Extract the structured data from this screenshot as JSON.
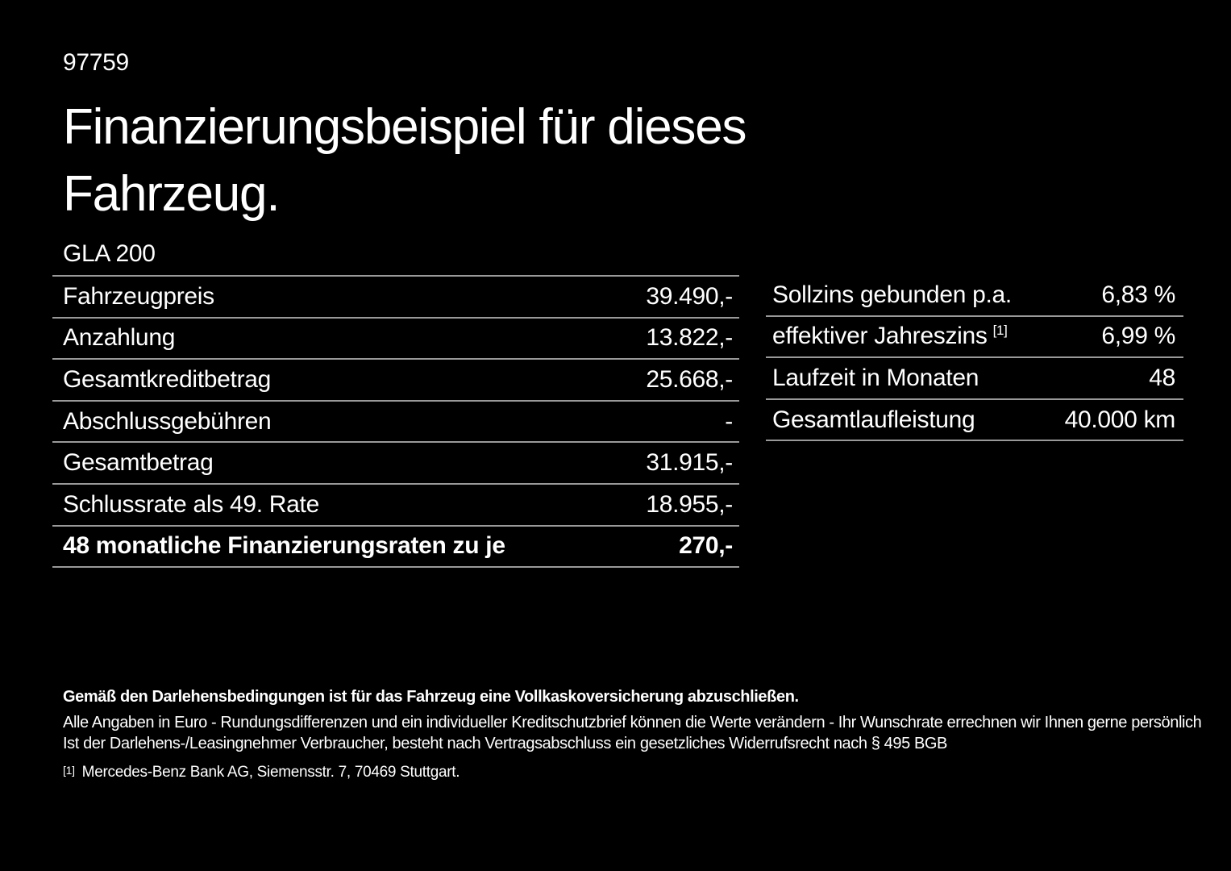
{
  "page": {
    "doc_number": "97759",
    "title_line1": "Finanzierungsbeispiel für dieses",
    "title_line2": "Fahrzeug.",
    "model": "GLA 200"
  },
  "finance_table": {
    "rows": [
      {
        "label": "Fahrzeugpreis",
        "value": "39.490,-"
      },
      {
        "label": "Anzahlung",
        "value": "13.822,-"
      },
      {
        "label": "Gesamtkreditbetrag",
        "value": "25.668,-"
      },
      {
        "label": "Abschlussgebühren",
        "value": "-"
      },
      {
        "label": "Gesamtbetrag",
        "value": "31.915,-"
      },
      {
        "label": "Schlussrate als 49. Rate",
        "value": "18.955,-"
      },
      {
        "label": "48 monatliche Finanzierungsraten zu je",
        "value": "270,-"
      }
    ]
  },
  "conditions_table": {
    "rows": [
      {
        "label": "Sollzins gebunden p.a.",
        "value": "6,83 %"
      },
      {
        "label": "effektiver Jahreszins",
        "sup": "[1]",
        "value": "6,99 %"
      },
      {
        "label": "Laufzeit in Monaten",
        "value": "48"
      },
      {
        "label": "Gesamtlaufleistung",
        "value": "40.000 km"
      }
    ]
  },
  "footer": {
    "insurance_note": "Gemäß den Darlehensbedingungen ist für das Fahrzeug eine Vollkaskoversicherung abzuschließen.",
    "disclaimer_line1": "Alle Angaben in Euro - Rundungsdifferenzen und ein individueller Kreditschutzbrief können die Werte verändern - Ihr Wunschrate errechnen wir Ihnen gerne persönlich",
    "disclaimer_line2": "Ist der Darlehens-/Leasingnehmer Verbraucher, besteht nach Vertragsabschluss ein gesetzliches Widerrufsrecht nach § 495 BGB",
    "footnote_marker": "[1]",
    "footnote_text": "Mercedes-Benz Bank AG, Siemensstr. 7, 70469 Stuttgart."
  },
  "colors": {
    "background": "#000000",
    "text": "#ffffff",
    "divider": "#999999"
  }
}
